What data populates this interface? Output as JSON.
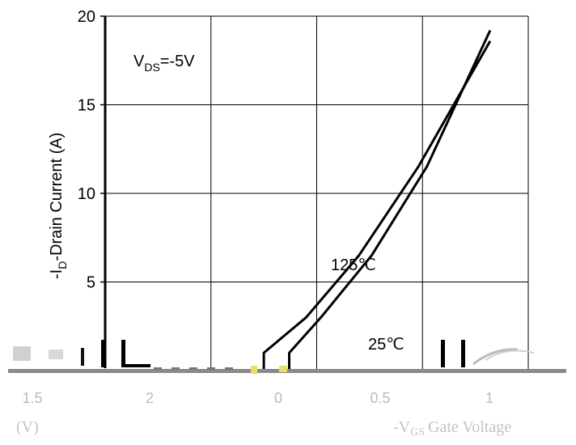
{
  "chart_data": {
    "type": "line",
    "ylabel": "-I",
    "ylabel_sub": "D",
    "ylabel_rest": "-Drain Current (A)",
    "ylim": [
      0,
      20
    ],
    "y_ticks": [
      "5",
      "10",
      "15",
      "20"
    ],
    "condition_main": "V",
    "condition_sub": "DS",
    "condition_rest": "=-5V",
    "x_tick_labels": [
      "1.5",
      "2",
      "0",
      "0.5",
      "1"
    ],
    "x_unit": "(V)",
    "x_axis_fragment": "-V",
    "x_axis_fragment_sub": "GS",
    "x_axis_fragment_rest": "Gate Voltage",
    "grid": true,
    "series": [
      {
        "name": "125℃",
        "vertical_at": 2.25,
        "x": [
          2.25,
          2.25,
          2.45,
          2.7,
          2.98,
          3.32
        ],
        "y": [
          0,
          1.0,
          3.0,
          6.5,
          11.5,
          18.6
        ]
      },
      {
        "name": "25℃",
        "vertical_at": 2.37,
        "x": [
          2.37,
          2.37,
          2.52,
          2.76,
          3.02,
          3.32
        ],
        "y": [
          0,
          1.0,
          3.0,
          6.5,
          11.5,
          19.2
        ]
      }
    ],
    "label_125": "125℃",
    "label_25": "25℃"
  }
}
